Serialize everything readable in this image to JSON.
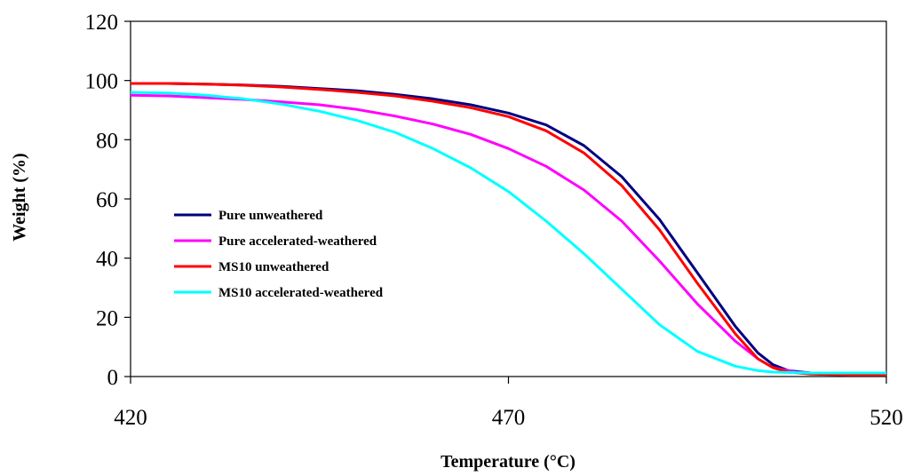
{
  "chart_data": {
    "type": "line",
    "title": "",
    "xlabel": "Temperature (°C)",
    "ylabel": "Weight (%)",
    "xlim": [
      420,
      520
    ],
    "ylim": [
      0,
      120
    ],
    "xticks": [
      420,
      470,
      520
    ],
    "yticks": [
      0,
      20,
      40,
      60,
      80,
      100,
      120
    ],
    "grid": false,
    "legend_position": "center-left",
    "series": [
      {
        "name": "Pure unweathered",
        "color": "#000080",
        "points": [
          [
            420,
            99
          ],
          [
            425,
            99
          ],
          [
            430,
            98.8
          ],
          [
            435,
            98.5
          ],
          [
            440,
            98
          ],
          [
            445,
            97.3
          ],
          [
            450,
            96.5
          ],
          [
            455,
            95.3
          ],
          [
            460,
            93.8
          ],
          [
            465,
            91.8
          ],
          [
            470,
            89
          ],
          [
            475,
            85
          ],
          [
            480,
            78
          ],
          [
            485,
            67.5
          ],
          [
            490,
            53
          ],
          [
            495,
            35
          ],
          [
            500,
            17
          ],
          [
            503,
            8
          ],
          [
            505,
            4
          ],
          [
            507,
            2
          ],
          [
            510,
            1.2
          ],
          [
            515,
            1
          ],
          [
            520,
            1
          ]
        ]
      },
      {
        "name": "Pure accelerated-weathered",
        "color": "#FF00FF",
        "points": [
          [
            420,
            95
          ],
          [
            425,
            94.8
          ],
          [
            430,
            94.2
          ],
          [
            435,
            93.6
          ],
          [
            440,
            92.8
          ],
          [
            445,
            91.8
          ],
          [
            450,
            90.2
          ],
          [
            455,
            88
          ],
          [
            460,
            85.3
          ],
          [
            465,
            81.8
          ],
          [
            470,
            77
          ],
          [
            475,
            71
          ],
          [
            480,
            63
          ],
          [
            485,
            52.5
          ],
          [
            490,
            39
          ],
          [
            495,
            24.5
          ],
          [
            500,
            12
          ],
          [
            503,
            6
          ],
          [
            505,
            3
          ],
          [
            508,
            1.5
          ],
          [
            510,
            1.2
          ],
          [
            515,
            1
          ],
          [
            520,
            1
          ]
        ]
      },
      {
        "name": "MS10 unweathered",
        "color": "#FF0000",
        "points": [
          [
            420,
            99
          ],
          [
            425,
            99
          ],
          [
            430,
            98.8
          ],
          [
            435,
            98.4
          ],
          [
            440,
            97.8
          ],
          [
            445,
            97
          ],
          [
            450,
            96
          ],
          [
            455,
            94.8
          ],
          [
            460,
            93
          ],
          [
            465,
            90.8
          ],
          [
            470,
            87.8
          ],
          [
            475,
            83
          ],
          [
            480,
            75.5
          ],
          [
            485,
            64.5
          ],
          [
            490,
            49.5
          ],
          [
            495,
            31.5
          ],
          [
            500,
            14.5
          ],
          [
            503,
            6
          ],
          [
            505,
            3
          ],
          [
            507,
            1.5
          ],
          [
            510,
            0.8
          ],
          [
            515,
            0.5
          ],
          [
            520,
            0.5
          ]
        ]
      },
      {
        "name": "MS10 accelerated-weathered",
        "color": "#00FFFF",
        "points": [
          [
            420,
            96
          ],
          [
            425,
            95.8
          ],
          [
            430,
            95
          ],
          [
            435,
            93.8
          ],
          [
            440,
            92
          ],
          [
            445,
            89.6
          ],
          [
            450,
            86.5
          ],
          [
            455,
            82.5
          ],
          [
            460,
            77
          ],
          [
            465,
            70.5
          ],
          [
            470,
            62.5
          ],
          [
            475,
            52.5
          ],
          [
            480,
            41.5
          ],
          [
            485,
            29.5
          ],
          [
            490,
            17.5
          ],
          [
            495,
            8.5
          ],
          [
            500,
            3.5
          ],
          [
            503,
            2
          ],
          [
            505,
            1.5
          ],
          [
            510,
            1.2
          ],
          [
            515,
            1.2
          ],
          [
            520,
            1.2
          ]
        ]
      }
    ]
  }
}
